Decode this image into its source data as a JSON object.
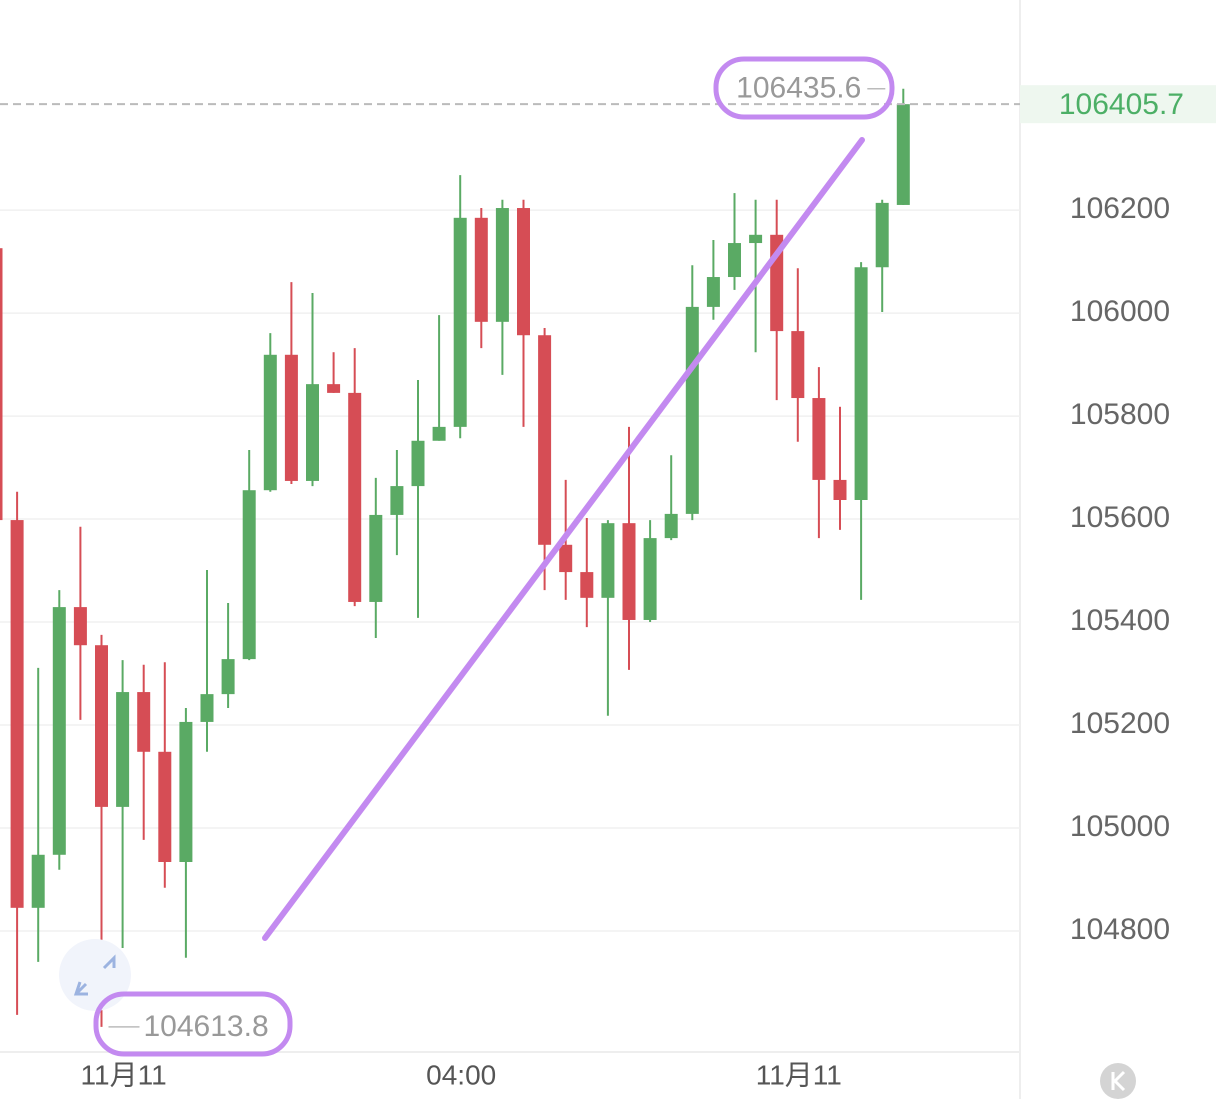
{
  "chart_data": {
    "type": "candlestick",
    "categories": [
      null,
      null,
      null,
      null,
      null,
      null,
      "11月11",
      null,
      null,
      null,
      null,
      null,
      null,
      null,
      null,
      null,
      null,
      null,
      null,
      null,
      null,
      null,
      "04:00",
      null,
      null,
      null,
      null,
      null,
      null,
      null,
      null,
      null,
      null,
      null,
      null,
      null,
      null,
      null,
      "11月11",
      null,
      null,
      null,
      null,
      null
    ],
    "open": [
      106126,
      105598,
      104845,
      104948,
      105429,
      105355,
      105041,
      105264,
      105148,
      104934,
      105206,
      105260,
      105328,
      105656,
      105919,
      105674,
      105862,
      105845,
      105439,
      105608,
      105664,
      105752,
      105779,
      106185,
      105983,
      106204,
      105957,
      105550,
      105497,
      105447,
      105592,
      105404,
      105563,
      105610,
      106012,
      106070,
      106136,
      106152,
      105965,
      105835,
      105676,
      105637,
      106089,
      106210
    ],
    "high": [
      106132,
      105653,
      105311,
      105462,
      105585,
      105375,
      105326,
      105317,
      105322,
      105233,
      105501,
      105437,
      105734,
      105961,
      106060,
      106039,
      105924,
      105932,
      105680,
      105734,
      105870,
      105996,
      106268,
      106204,
      106220,
      106220,
      105971,
      105676,
      105602,
      105598,
      105779,
      105598,
      105724,
      106093,
      106142,
      106233,
      106220,
      106220,
      106087,
      105895,
      105818,
      106099,
      106220,
      106435.6
    ],
    "low": [
      105590,
      104637,
      104740,
      104919,
      105210,
      104613.8,
      104767,
      104977,
      104884,
      104748,
      105148,
      105233,
      105326,
      105653,
      105668,
      105664,
      105845,
      105431,
      105369,
      105530,
      105408,
      105752,
      105757,
      105932,
      105880,
      105779,
      105462,
      105443,
      105390,
      105218,
      105307,
      105400,
      105559,
      105598,
      105987,
      106045,
      105924,
      105831,
      105750,
      105563,
      105579,
      105443,
      106002,
      106210
    ],
    "close": [
      105598,
      104845,
      104948,
      105429,
      105355,
      105041,
      105264,
      105148,
      104934,
      105206,
      105260,
      105328,
      105656,
      105919,
      105674,
      105862,
      105845,
      105439,
      105608,
      105664,
      105752,
      105779,
      106185,
      105983,
      106204,
      105957,
      105550,
      105497,
      105447,
      105592,
      105404,
      105563,
      105610,
      106012,
      106070,
      106136,
      106152,
      105965,
      105835,
      105676,
      105637,
      106089,
      106214,
      106405.7
    ],
    "up_color": "#5aaa64",
    "down_color": "#d64d55",
    "ylim": [
      104565,
      106608
    ],
    "yticks": [
      104800,
      105000,
      105200,
      105400,
      105600,
      105800,
      106000,
      106200
    ],
    "grid": true,
    "last_price": 106405.7,
    "max_marker": 106435.6,
    "min_marker": 104613.8
  }
}
